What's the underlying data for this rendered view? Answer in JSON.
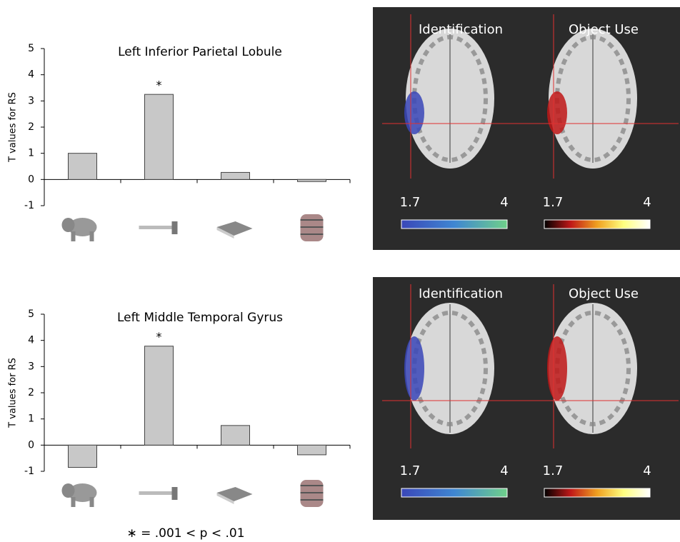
{
  "chart_data": [
    {
      "type": "bar",
      "title": "Left Inferior Parietal Lobule",
      "y_label": "T values for RS",
      "categories": [
        null,
        null,
        null,
        null
      ],
      "values": [
        1.0,
        3.25,
        0.27,
        -0.08
      ],
      "annotations": [
        null,
        "*",
        null,
        null
      ],
      "color": "#c8c8c8",
      "ylim": [
        -1,
        5
      ],
      "yticks": [
        -1,
        0,
        1,
        2,
        3,
        4,
        5
      ]
    },
    {
      "type": "bar",
      "title": "Left Middle Temporal Gyrus",
      "y_label": "T values for RS",
      "categories": [
        null,
        null,
        null,
        null
      ],
      "values": [
        -0.85,
        3.78,
        0.75,
        -0.37
      ],
      "annotations": [
        null,
        "*",
        null,
        null
      ],
      "color": "#c8c8c8",
      "ylim": [
        -1,
        5
      ],
      "yticks": [
        -1,
        0,
        1,
        2,
        3,
        4,
        5
      ]
    }
  ],
  "footnote": "∗ = .001 < p < .01",
  "brain_panels": [
    {
      "maps": [
        {
          "label": "Identification",
          "scale_min": 1.7,
          "scale_max": 4,
          "colormap": [
            "#3a47b8",
            "#3f86d2",
            "#6fd08a"
          ]
        },
        {
          "label": "Object Use",
          "scale_min": 1.7,
          "scale_max": 4,
          "colormap": [
            "#000000",
            "#c01818",
            "#f0a020",
            "#ffff80",
            "#ffffff"
          ]
        }
      ]
    },
    {
      "maps": [
        {
          "label": "Identification",
          "scale_min": 1.7,
          "scale_max": 4,
          "colormap": [
            "#3a47b8",
            "#3f86d2",
            "#6fd08a"
          ]
        },
        {
          "label": "Object Use",
          "scale_min": 1.7,
          "scale_max": 4,
          "colormap": [
            "#000000",
            "#c01818",
            "#f0a020",
            "#ffff80",
            "#ffffff"
          ]
        }
      ]
    }
  ]
}
